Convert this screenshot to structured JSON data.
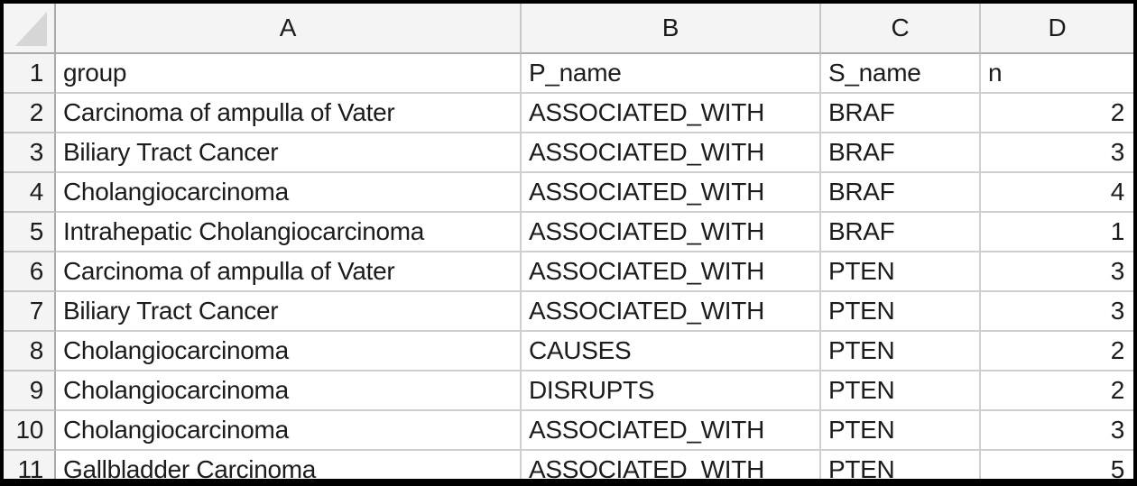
{
  "sheet": {
    "column_letters": [
      "A",
      "B",
      "C",
      "D"
    ],
    "rows": [
      {
        "num": 1,
        "cells": [
          "group",
          "P_name",
          "S_name",
          "n"
        ]
      },
      {
        "num": 2,
        "cells": [
          "Carcinoma of ampulla of Vater",
          "ASSOCIATED_WITH",
          "BRAF",
          2
        ]
      },
      {
        "num": 3,
        "cells": [
          "Biliary Tract Cancer",
          "ASSOCIATED_WITH",
          "BRAF",
          3
        ]
      },
      {
        "num": 4,
        "cells": [
          "Cholangiocarcinoma",
          "ASSOCIATED_WITH",
          "BRAF",
          4
        ]
      },
      {
        "num": 5,
        "cells": [
          "Intrahepatic Cholangiocarcinoma",
          "ASSOCIATED_WITH",
          "BRAF",
          1
        ]
      },
      {
        "num": 6,
        "cells": [
          "Carcinoma of ampulla of Vater",
          "ASSOCIATED_WITH",
          "PTEN",
          3
        ]
      },
      {
        "num": 7,
        "cells": [
          "Biliary Tract Cancer",
          "ASSOCIATED_WITH",
          "PTEN",
          3
        ]
      },
      {
        "num": 8,
        "cells": [
          "Cholangiocarcinoma",
          "CAUSES",
          "PTEN",
          2
        ]
      },
      {
        "num": 9,
        "cells": [
          "Cholangiocarcinoma",
          "DISRUPTS",
          "PTEN",
          2
        ]
      },
      {
        "num": 10,
        "cells": [
          "Cholangiocarcinoma",
          "ASSOCIATED_WITH",
          "PTEN",
          3
        ]
      },
      {
        "num": 11,
        "cells": [
          "Gallbladder Carcinoma",
          "ASSOCIATED_WITH",
          "PTEN",
          5
        ]
      }
    ]
  },
  "colors": {
    "frame": "#000000",
    "cell_background": "#ffffff",
    "header_background": "#f4f4f4",
    "gridline": "#cfcfcf",
    "header_separator": "#ababab",
    "text": "#1c1c1c",
    "select_all_triangle": "#d6d6d6"
  }
}
